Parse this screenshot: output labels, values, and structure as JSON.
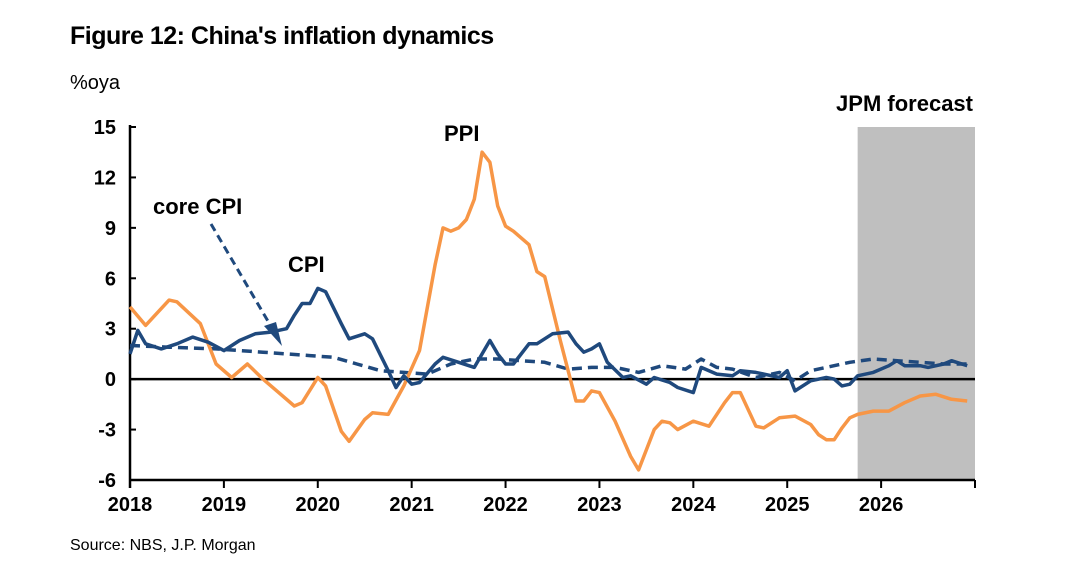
{
  "chart_data": {
    "type": "line",
    "title": "Figure 12: China's inflation dynamics",
    "ylabel": "%oya",
    "source": "Source: NBS, J.P. Morgan",
    "ylim": [
      -6,
      15
    ],
    "yticks": [
      15,
      12,
      9,
      6,
      3,
      0,
      -3,
      -6
    ],
    "xlim": [
      "2018-01",
      "2027-01"
    ],
    "xticks": [
      "2018",
      "2019",
      "2020",
      "2021",
      "2022",
      "2023",
      "2024",
      "2025",
      "2026"
    ],
    "forecast_region": {
      "label": "JPM forecast",
      "start": "2025-10",
      "end": "2027-01",
      "color": "#bfbfbf"
    },
    "series": [
      {
        "name": "PPI",
        "color": "#f79646",
        "style": "solid",
        "x": [
          "2018-01",
          "2018-03",
          "2018-06",
          "2018-07",
          "2018-10",
          "2018-12",
          "2019-02",
          "2019-04",
          "2019-06",
          "2019-08",
          "2019-10",
          "2019-11",
          "2020-01",
          "2020-02",
          "2020-04",
          "2020-05",
          "2020-07",
          "2020-08",
          "2020-10",
          "2020-12",
          "2021-02",
          "2021-04",
          "2021-05",
          "2021-06",
          "2021-07",
          "2021-08",
          "2021-09",
          "2021-10",
          "2021-11",
          "2021-12",
          "2022-01",
          "2022-02",
          "2022-04",
          "2022-05",
          "2022-06",
          "2022-08",
          "2022-10",
          "2022-11",
          "2022-12",
          "2023-01",
          "2023-03",
          "2023-05",
          "2023-06",
          "2023-08",
          "2023-09",
          "2023-10",
          "2023-11",
          "2024-01",
          "2024-03",
          "2024-05",
          "2024-06",
          "2024-07",
          "2024-09",
          "2024-10",
          "2024-12",
          "2025-02",
          "2025-04",
          "2025-05",
          "2025-06",
          "2025-07",
          "2025-08",
          "2025-09",
          "2025-10",
          "2025-12",
          "2026-02",
          "2026-04",
          "2026-06",
          "2026-08",
          "2026-10",
          "2026-12"
        ],
        "values": [
          4.3,
          3.2,
          4.7,
          4.6,
          3.3,
          0.9,
          0.1,
          0.9,
          0.0,
          -0.8,
          -1.6,
          -1.4,
          0.1,
          -0.4,
          -3.1,
          -3.7,
          -2.4,
          -2.0,
          -2.1,
          -0.4,
          1.7,
          6.8,
          9.0,
          8.8,
          9.0,
          9.5,
          10.7,
          13.5,
          12.9,
          10.3,
          9.1,
          8.8,
          8.0,
          6.4,
          6.1,
          2.3,
          -1.3,
          -1.3,
          -0.7,
          -0.8,
          -2.5,
          -4.6,
          -5.4,
          -3.0,
          -2.5,
          -2.6,
          -3.0,
          -2.5,
          -2.8,
          -1.4,
          -0.8,
          -0.8,
          -2.8,
          -2.9,
          -2.3,
          -2.2,
          -2.7,
          -3.3,
          -3.6,
          -3.6,
          -2.9,
          -2.3,
          -2.1,
          -1.9,
          -1.9,
          -1.4,
          -1.0,
          -0.9,
          -1.2,
          -1.3
        ]
      },
      {
        "name": "CPI",
        "color": "#1f497d",
        "style": "solid",
        "x": [
          "2018-01",
          "2018-02",
          "2018-03",
          "2018-05",
          "2018-07",
          "2018-09",
          "2018-11",
          "2019-01",
          "2019-03",
          "2019-05",
          "2019-07",
          "2019-09",
          "2019-10",
          "2019-11",
          "2019-12",
          "2020-01",
          "2020-02",
          "2020-04",
          "2020-05",
          "2020-07",
          "2020-08",
          "2020-10",
          "2020-11",
          "2020-12",
          "2021-01",
          "2021-02",
          "2021-04",
          "2021-05",
          "2021-07",
          "2021-09",
          "2021-10",
          "2021-11",
          "2021-12",
          "2022-01",
          "2022-02",
          "2022-04",
          "2022-05",
          "2022-07",
          "2022-09",
          "2022-10",
          "2022-11",
          "2022-12",
          "2023-01",
          "2023-02",
          "2023-04",
          "2023-05",
          "2023-07",
          "2023-08",
          "2023-10",
          "2023-11",
          "2024-01",
          "2024-02",
          "2024-04",
          "2024-06",
          "2024-07",
          "2024-09",
          "2024-10",
          "2024-12",
          "2025-01",
          "2025-02",
          "2025-04",
          "2025-06",
          "2025-07",
          "2025-08",
          "2025-09",
          "2025-10",
          "2025-12",
          "2026-02",
          "2026-03",
          "2026-04",
          "2026-06",
          "2026-07",
          "2026-09",
          "2026-10",
          "2026-12"
        ],
        "values": [
          1.5,
          2.9,
          2.1,
          1.8,
          2.1,
          2.5,
          2.2,
          1.7,
          2.3,
          2.7,
          2.8,
          3.0,
          3.8,
          4.5,
          4.5,
          5.4,
          5.2,
          3.3,
          2.4,
          2.7,
          2.4,
          0.5,
          -0.5,
          0.2,
          -0.3,
          -0.2,
          0.9,
          1.3,
          1.0,
          0.7,
          1.5,
          2.3,
          1.5,
          0.9,
          0.9,
          2.1,
          2.1,
          2.7,
          2.8,
          2.1,
          1.6,
          1.8,
          2.1,
          1.0,
          0.1,
          0.2,
          -0.3,
          0.1,
          -0.2,
          -0.5,
          -0.8,
          0.7,
          0.3,
          0.2,
          0.5,
          0.4,
          0.3,
          0.1,
          0.5,
          -0.7,
          -0.1,
          0.1,
          0.0,
          -0.4,
          -0.3,
          0.2,
          0.4,
          0.8,
          1.1,
          0.8,
          0.8,
          0.7,
          0.9,
          1.1,
          0.8
        ]
      },
      {
        "name": "core CPI",
        "color": "#1f497d",
        "style": "dashed",
        "x": [
          "2018-01",
          "2018-06",
          "2018-12",
          "2019-06",
          "2019-12",
          "2020-03",
          "2020-06",
          "2020-09",
          "2020-12",
          "2021-03",
          "2021-06",
          "2021-09",
          "2021-12",
          "2022-03",
          "2022-06",
          "2022-09",
          "2022-12",
          "2023-03",
          "2023-06",
          "2023-09",
          "2023-12",
          "2024-02",
          "2024-04",
          "2024-06",
          "2024-09",
          "2024-12",
          "2025-02",
          "2025-04",
          "2025-06",
          "2025-09",
          "2025-12",
          "2026-03",
          "2026-06",
          "2026-09",
          "2026-12"
        ],
        "values": [
          2.0,
          1.9,
          1.8,
          1.6,
          1.4,
          1.3,
          0.9,
          0.5,
          0.4,
          0.3,
          0.9,
          1.2,
          1.2,
          1.1,
          1.0,
          0.6,
          0.7,
          0.7,
          0.4,
          0.8,
          0.6,
          1.2,
          0.7,
          0.6,
          0.1,
          0.4,
          -0.1,
          0.5,
          0.7,
          1.0,
          1.2,
          1.1,
          1.0,
          0.9,
          0.9
        ]
      }
    ],
    "annotations": [
      "PPI",
      "core CPI",
      "CPI"
    ],
    "grid": false,
    "legend": "none (inline labels)"
  }
}
